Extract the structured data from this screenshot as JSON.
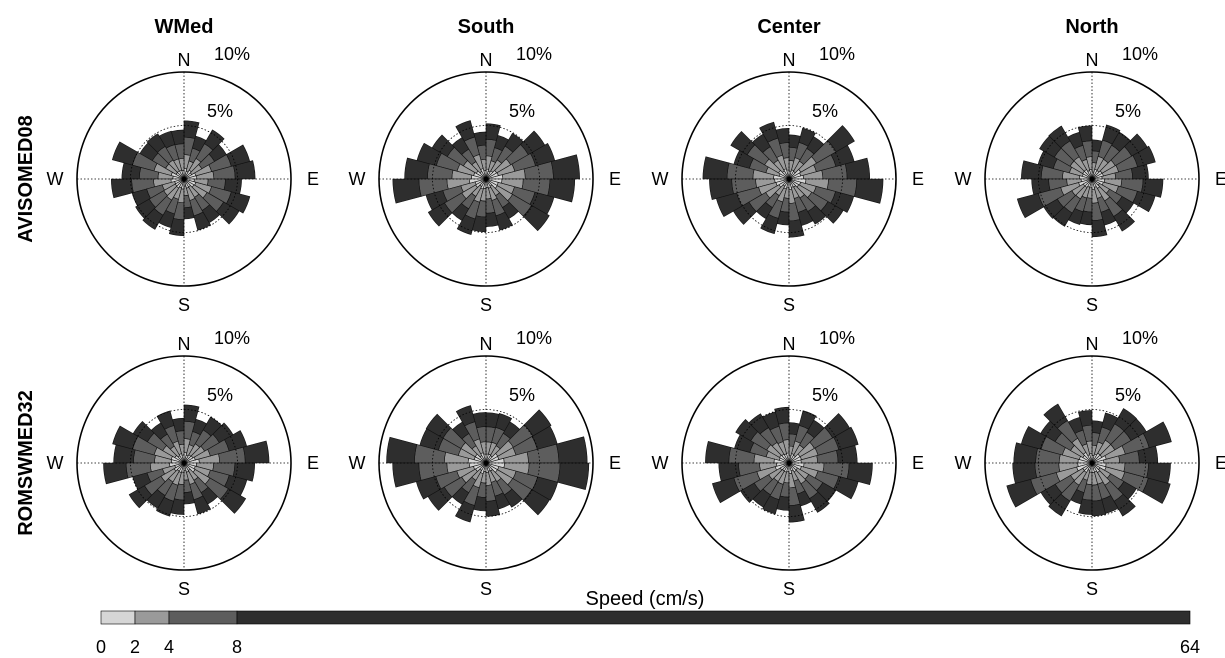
{
  "chart_data": {
    "type": "wind-rose",
    "columns": [
      "WMed",
      "South",
      "Center",
      "North"
    ],
    "rows": [
      "AVISOMED08",
      "ROMSWMED32"
    ],
    "directions": [
      "N",
      "E",
      "S",
      "W"
    ],
    "ring_labels": [
      "5%",
      "10%"
    ],
    "rmax_percent": 10,
    "sectors": 24,
    "colorbar": {
      "label": "Speed (cm/s)",
      "bins": [
        {
          "from": 0,
          "to": 2,
          "color": "#d6d6d6"
        },
        {
          "from": 2,
          "to": 4,
          "color": "#9a9a9a"
        },
        {
          "from": 4,
          "to": 8,
          "color": "#5d5d5d"
        },
        {
          "from": 8,
          "to": 64,
          "color": "#2e2e2e"
        }
      ],
      "tick_labels": [
        "0",
        "2",
        "4",
        "8",
        "64"
      ]
    },
    "roses": [
      [
        {
          "east_percent": 6.2,
          "north_percent": 4.6
        },
        {
          "east_percent": 7.6,
          "north_percent": 4.6
        },
        {
          "east_percent": 7.4,
          "north_percent": 4.6
        },
        {
          "east_percent": 6.4,
          "north_percent": 4.6
        }
      ],
      [
        {
          "east_percent": 6.8,
          "north_percent": 4.5
        },
        {
          "east_percent": 8.4,
          "north_percent": 4.6
        },
        {
          "east_percent": 7.0,
          "north_percent": 4.6
        },
        {
          "east_percent": 7.9,
          "north_percent": 4.6
        }
      ]
    ]
  },
  "icons": {
    "gray_bins": "speed-bin-colors"
  }
}
